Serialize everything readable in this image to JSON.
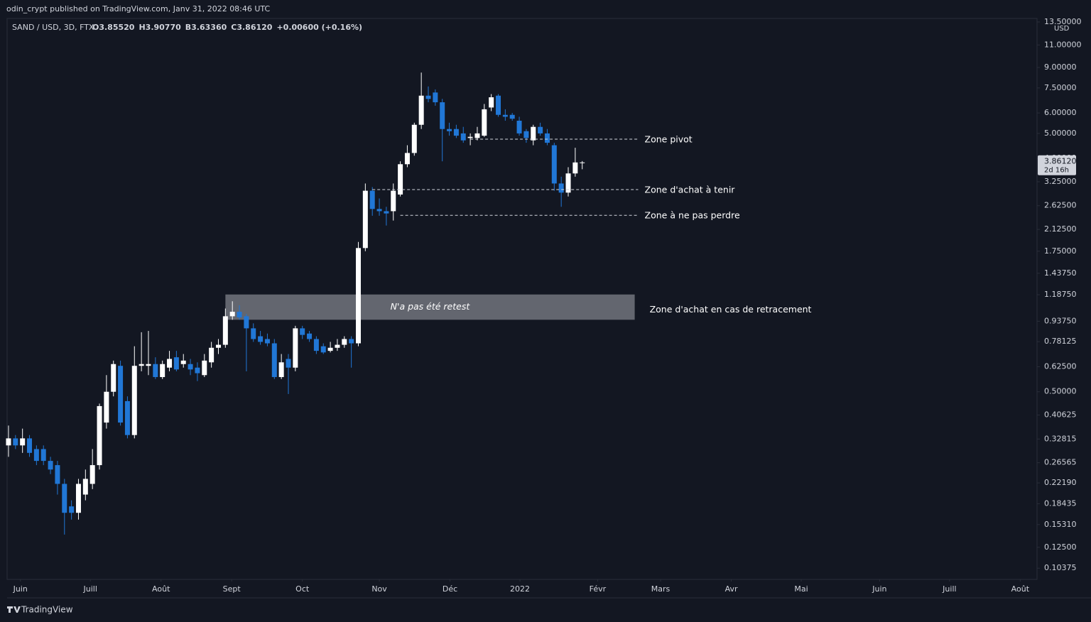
{
  "header": {
    "published": "odin_crypt published on TradingView.com, Janv 31, 2022 08:46 UTC"
  },
  "footer": {
    "brand": "TradingView"
  },
  "chart_data": {
    "type": "candlestick",
    "symbol": "SAND / USD, 3D, FTX",
    "ohlc_legend": [
      "O3.85520",
      "H3.90770",
      "B3.63360",
      "C3.86120",
      "+0.00600 (+0.16%)"
    ],
    "currency": "USD",
    "log_scale": true,
    "up_color": "#ffffff",
    "down_color": "#2177d6",
    "open": [
      0.31,
      0.33,
      0.31,
      0.33,
      0.3,
      0.3,
      0.27,
      0.26,
      0.22,
      0.18,
      0.17,
      0.2,
      0.22,
      0.26,
      0.38,
      0.5,
      0.63,
      0.46,
      0.34,
      0.63,
      0.63,
      0.64,
      0.57,
      0.62,
      0.68,
      0.64,
      0.64,
      0.62,
      0.58,
      0.65,
      0.74,
      0.76,
      0.98,
      1.02,
      0.98,
      0.88,
      0.82,
      0.8,
      0.77,
      0.57,
      0.67,
      0.62,
      0.88,
      0.84,
      0.8,
      0.75,
      0.72,
      0.74,
      0.76,
      0.8,
      0.77,
      1.8,
      3.0,
      2.55,
      2.5,
      2.5,
      2.9,
      3.8,
      4.2,
      5.4,
      7.0,
      7.2,
      6.6,
      5.2,
      5.2,
      5.0,
      4.8,
      4.8,
      4.9,
      6.3,
      7.0,
      5.9,
      5.9,
      5.6,
      5.1,
      4.7,
      5.3,
      5.0,
      4.5,
      3.2,
      2.95,
      3.5,
      3.8552
    ],
    "high": [
      0.37,
      0.34,
      0.36,
      0.34,
      0.31,
      0.31,
      0.28,
      0.27,
      0.23,
      0.19,
      0.23,
      0.25,
      0.3,
      0.45,
      0.58,
      0.66,
      0.66,
      0.48,
      0.75,
      0.85,
      0.86,
      0.68,
      0.66,
      0.72,
      0.72,
      0.7,
      0.67,
      0.65,
      0.7,
      0.78,
      0.8,
      1.05,
      1.12,
      1.08,
      1.0,
      0.92,
      0.86,
      0.84,
      0.8,
      0.7,
      0.7,
      0.9,
      0.9,
      0.86,
      0.82,
      0.77,
      0.78,
      0.8,
      0.82,
      0.82,
      1.9,
      3.2,
      3.1,
      2.8,
      2.6,
      3.2,
      3.9,
      4.5,
      5.5,
      8.6,
      7.6,
      7.4,
      6.8,
      5.5,
      5.4,
      5.3,
      5.0,
      5.3,
      6.5,
      7.1,
      7.1,
      6.2,
      6.0,
      5.8,
      5.2,
      5.4,
      5.5,
      5.2,
      4.6,
      3.4,
      3.7,
      4.4,
      3.9077
    ],
    "low": [
      0.28,
      0.3,
      0.29,
      0.28,
      0.26,
      0.26,
      0.24,
      0.2,
      0.14,
      0.16,
      0.16,
      0.19,
      0.21,
      0.25,
      0.36,
      0.48,
      0.37,
      0.33,
      0.33,
      0.6,
      0.58,
      0.56,
      0.56,
      0.6,
      0.6,
      0.62,
      0.58,
      0.55,
      0.57,
      0.62,
      0.7,
      0.74,
      0.95,
      0.95,
      0.6,
      0.78,
      0.76,
      0.75,
      0.56,
      0.56,
      0.49,
      0.6,
      0.8,
      0.78,
      0.7,
      0.7,
      0.71,
      0.72,
      0.74,
      0.62,
      0.75,
      1.75,
      2.4,
      2.4,
      2.2,
      2.3,
      2.85,
      3.7,
      4.1,
      5.2,
      6.6,
      6.4,
      3.9,
      4.9,
      4.8,
      4.6,
      4.5,
      4.7,
      4.85,
      6.1,
      5.8,
      5.6,
      5.6,
      4.9,
      4.6,
      4.5,
      4.9,
      4.5,
      3.0,
      2.6,
      2.85,
      3.4,
      3.6336
    ],
    "close": [
      0.33,
      0.31,
      0.33,
      0.29,
      0.27,
      0.27,
      0.25,
      0.22,
      0.17,
      0.17,
      0.22,
      0.23,
      0.26,
      0.44,
      0.5,
      0.64,
      0.38,
      0.34,
      0.63,
      0.64,
      0.64,
      0.57,
      0.64,
      0.67,
      0.61,
      0.66,
      0.61,
      0.59,
      0.66,
      0.74,
      0.76,
      0.98,
      1.02,
      0.97,
      0.88,
      0.8,
      0.78,
      0.77,
      0.57,
      0.65,
      0.62,
      0.88,
      0.83,
      0.8,
      0.72,
      0.71,
      0.74,
      0.76,
      0.8,
      0.77,
      1.8,
      3.0,
      2.55,
      2.5,
      2.45,
      3.0,
      3.8,
      4.2,
      5.4,
      7.0,
      6.8,
      6.6,
      5.2,
      5.1,
      4.9,
      4.7,
      4.85,
      5.0,
      6.2,
      6.9,
      5.9,
      5.8,
      5.7,
      5.0,
      4.8,
      5.3,
      5.0,
      4.6,
      3.2,
      2.95,
      3.5,
      3.86,
      3.8612
    ],
    "xlim": [
      -0.2,
      147.0
    ],
    "xticks": [
      {
        "value": 1.7,
        "label": "Juin"
      },
      {
        "value": 11.7,
        "label": "Juill"
      },
      {
        "value": 21.8,
        "label": "Août"
      },
      {
        "value": 31.9,
        "label": "Sept"
      },
      {
        "value": 42,
        "label": "Oct"
      },
      {
        "value": 53,
        "label": "Nov"
      },
      {
        "value": 63.1,
        "label": "Déc"
      },
      {
        "value": 73.1,
        "label": "2022"
      },
      {
        "value": 84.2,
        "label": "Févr"
      },
      {
        "value": 93.2,
        "label": "Mars"
      },
      {
        "value": 103.3,
        "label": "Avr"
      },
      {
        "value": 113.3,
        "label": "Mai"
      },
      {
        "value": 124.5,
        "label": "Juin"
      },
      {
        "value": 134.5,
        "label": "Juill"
      },
      {
        "value": 144.6,
        "label": "Août"
      }
    ],
    "ylim": [
      0.0939,
      13.93
    ],
    "yticks": [
      {
        "value": 13.5,
        "label": "13.50000"
      },
      {
        "value": 11,
        "label": "11.00000"
      },
      {
        "value": 9,
        "label": "9.00000"
      },
      {
        "value": 7.5,
        "label": "7.50000"
      },
      {
        "value": 6,
        "label": "6.00000"
      },
      {
        "value": 5,
        "label": "5.00000"
      },
      {
        "value": 4,
        "label": "4.00000"
      },
      {
        "value": 3.25,
        "label": "3.25000"
      },
      {
        "value": 2.625,
        "label": "2.62500"
      },
      {
        "value": 2.125,
        "label": "2.12500"
      },
      {
        "value": 1.75,
        "label": "1.75000"
      },
      {
        "value": 1.4375,
        "label": "1.43750"
      },
      {
        "value": 1.1875,
        "label": "1.18750"
      },
      {
        "value": 0.9375,
        "label": "0.93750"
      },
      {
        "value": 0.78125,
        "label": "0.78125"
      },
      {
        "value": 0.625,
        "label": "0.62500"
      },
      {
        "value": 0.5,
        "label": "0.50000"
      },
      {
        "value": 0.40625,
        "label": "0.40625"
      },
      {
        "value": 0.32815,
        "label": "0.32815"
      },
      {
        "value": 0.26565,
        "label": "0.26565"
      },
      {
        "value": 0.2219,
        "label": "0.22190"
      },
      {
        "value": 0.18435,
        "label": "0.18435"
      },
      {
        "value": 0.1531,
        "label": "0.15310"
      },
      {
        "value": 0.125,
        "label": "0.12500"
      },
      {
        "value": 0.10375,
        "label": "0.10375"
      }
    ],
    "last_price": {
      "value": 3.8612,
      "label": "3.86120",
      "countdown": "2d 16h"
    },
    "lines": [
      {
        "text": "Zone pivot",
        "y": 4.75,
        "x0": 66,
        "x1": 90
      },
      {
        "text": "Zone d'achat à tenir",
        "y": 3.03,
        "x0": 52,
        "x1": 90
      },
      {
        "text": "Zone à ne pas perdre",
        "y": 2.41,
        "x0": 56,
        "x1": 90
      }
    ],
    "box": {
      "text": "N'a pas été retest",
      "label": "Zone d'achat en cas de retracement",
      "y0": 0.95,
      "y1": 1.19,
      "x0": 31,
      "x1": 89.5
    }
  }
}
